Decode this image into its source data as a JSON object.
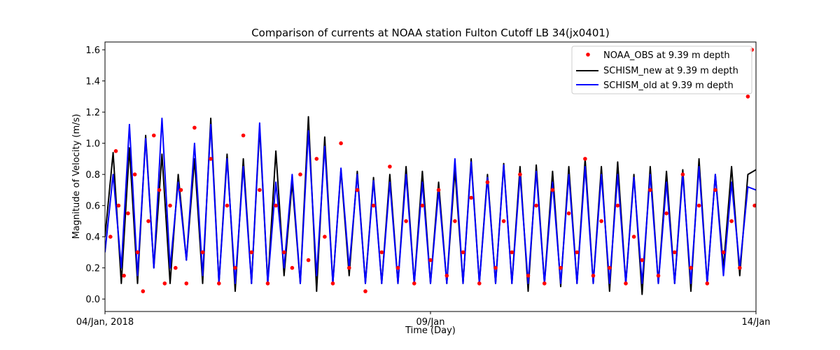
{
  "chart_data": {
    "type": "line",
    "title": "Comparison of currents at NOAA station Fulton Cutoff LB 34(jx0401)",
    "xlabel": "Time (Day)",
    "ylabel": "Magnitude of Velocity (m/s)",
    "xlim": [
      "2018-01-04",
      "2018-01-14"
    ],
    "ylim": [
      -0.08,
      1.65
    ],
    "yticks": [
      0.0,
      0.2,
      0.4,
      0.6,
      0.8,
      1.0,
      1.2,
      1.4,
      1.6
    ],
    "yticklabels": [
      "0.0",
      "0.2",
      "0.4",
      "0.6",
      "0.8",
      "1.0",
      "1.2",
      "1.4",
      "1.6"
    ],
    "xticks": [
      "2018-01-04",
      "2018-01-09",
      "2018-01-14"
    ],
    "xticklabels": [
      "04/Jan, 2018",
      "09/Jan",
      "14/Jan"
    ],
    "grid": false,
    "legend_position": "top-right",
    "series": [
      {
        "name": "NOAA_OBS at 9.39 m depth",
        "kind": "scatter",
        "color": "#ff0000",
        "x": [
          "2018-01-04T02:00",
          "2018-01-04T04:00",
          "2018-01-04T05:00",
          "2018-01-04T07:00",
          "2018-01-04T08:30",
          "2018-01-04T11:00",
          "2018-01-04T12:00",
          "2018-01-04T14:00",
          "2018-01-04T16:00",
          "2018-01-04T18:00",
          "2018-01-04T20:00",
          "2018-01-04T22:00",
          "2018-01-05T00:00",
          "2018-01-05T02:00",
          "2018-01-05T04:00",
          "2018-01-05T06:00",
          "2018-01-05T09:00",
          "2018-01-05T12:00",
          "2018-01-05T15:00",
          "2018-01-05T18:00",
          "2018-01-05T21:00",
          "2018-01-06T00:00",
          "2018-01-06T03:00",
          "2018-01-06T06:00",
          "2018-01-06T09:00",
          "2018-01-06T12:00",
          "2018-01-06T15:00",
          "2018-01-06T18:00",
          "2018-01-06T21:00",
          "2018-01-07T00:00",
          "2018-01-07T03:00",
          "2018-01-07T06:00",
          "2018-01-07T09:00",
          "2018-01-07T12:00",
          "2018-01-07T15:00",
          "2018-01-07T18:00",
          "2018-01-07T21:00",
          "2018-01-08T00:00",
          "2018-01-08T03:00",
          "2018-01-08T06:00",
          "2018-01-08T09:00",
          "2018-01-08T12:00",
          "2018-01-08T15:00",
          "2018-01-08T18:00",
          "2018-01-08T21:00",
          "2018-01-09T00:00",
          "2018-01-09T03:00",
          "2018-01-09T06:00",
          "2018-01-09T09:00",
          "2018-01-09T12:00",
          "2018-01-09T15:00",
          "2018-01-09T18:00",
          "2018-01-09T21:00",
          "2018-01-10T00:00",
          "2018-01-10T03:00",
          "2018-01-10T06:00",
          "2018-01-10T09:00",
          "2018-01-10T12:00",
          "2018-01-10T15:00",
          "2018-01-10T18:00",
          "2018-01-10T21:00",
          "2018-01-11T00:00",
          "2018-01-11T03:00",
          "2018-01-11T06:00",
          "2018-01-11T09:00",
          "2018-01-11T12:00",
          "2018-01-11T15:00",
          "2018-01-11T18:00",
          "2018-01-11T21:00",
          "2018-01-12T00:00",
          "2018-01-12T03:00",
          "2018-01-12T06:00",
          "2018-01-12T09:00",
          "2018-01-12T12:00",
          "2018-01-12T15:00",
          "2018-01-12T18:00",
          "2018-01-12T21:00",
          "2018-01-13T00:00",
          "2018-01-13T03:00",
          "2018-01-13T06:00",
          "2018-01-13T09:00",
          "2018-01-13T12:00",
          "2018-01-13T15:00",
          "2018-01-13T18:00",
          "2018-01-13T21:00",
          "2018-01-13T22:30",
          "2018-01-13T23:30"
        ],
        "y": [
          0.4,
          0.95,
          0.6,
          0.15,
          0.55,
          0.8,
          0.3,
          0.05,
          0.5,
          1.05,
          0.7,
          0.1,
          0.6,
          0.2,
          0.7,
          0.1,
          1.1,
          0.3,
          0.9,
          0.1,
          0.6,
          0.2,
          1.05,
          0.3,
          0.7,
          0.1,
          0.6,
          0.3,
          0.2,
          0.8,
          0.25,
          0.9,
          0.4,
          0.1,
          1.0,
          0.2,
          0.7,
          0.05,
          0.6,
          0.3,
          0.85,
          0.2,
          0.5,
          0.1,
          0.6,
          0.25,
          0.7,
          0.15,
          0.5,
          0.3,
          0.65,
          0.1,
          0.75,
          0.2,
          0.5,
          0.3,
          0.8,
          0.15,
          0.6,
          0.1,
          0.7,
          0.2,
          0.55,
          0.3,
          0.9,
          0.15,
          0.5,
          0.2,
          0.6,
          0.1,
          0.4,
          0.25,
          0.7,
          0.15,
          0.55,
          0.3,
          0.8,
          0.2,
          0.6,
          0.1,
          0.7,
          0.3,
          0.5,
          0.2,
          1.3,
          1.6,
          0.6
        ]
      },
      {
        "name": "SCHISM_new at 9.39 m depth",
        "kind": "line",
        "color": "#000000",
        "x": [
          "2018-01-04T00:00",
          "2018-01-04T03:00",
          "2018-01-04T06:00",
          "2018-01-04T09:00",
          "2018-01-04T12:00",
          "2018-01-04T15:00",
          "2018-01-04T18:00",
          "2018-01-04T21:00",
          "2018-01-05T00:00",
          "2018-01-05T03:00",
          "2018-01-05T06:00",
          "2018-01-05T09:00",
          "2018-01-05T12:00",
          "2018-01-05T15:00",
          "2018-01-05T18:00",
          "2018-01-05T21:00",
          "2018-01-06T00:00",
          "2018-01-06T03:00",
          "2018-01-06T06:00",
          "2018-01-06T09:00",
          "2018-01-06T12:00",
          "2018-01-06T15:00",
          "2018-01-06T18:00",
          "2018-01-06T21:00",
          "2018-01-07T00:00",
          "2018-01-07T03:00",
          "2018-01-07T06:00",
          "2018-01-07T09:00",
          "2018-01-07T12:00",
          "2018-01-07T15:00",
          "2018-01-07T18:00",
          "2018-01-07T21:00",
          "2018-01-08T00:00",
          "2018-01-08T03:00",
          "2018-01-08T06:00",
          "2018-01-08T09:00",
          "2018-01-08T12:00",
          "2018-01-08T15:00",
          "2018-01-08T18:00",
          "2018-01-08T21:00",
          "2018-01-09T00:00",
          "2018-01-09T03:00",
          "2018-01-09T06:00",
          "2018-01-09T09:00",
          "2018-01-09T12:00",
          "2018-01-09T15:00",
          "2018-01-09T18:00",
          "2018-01-09T21:00",
          "2018-01-10T00:00",
          "2018-01-10T03:00",
          "2018-01-10T06:00",
          "2018-01-10T09:00",
          "2018-01-10T12:00",
          "2018-01-10T15:00",
          "2018-01-10T18:00",
          "2018-01-10T21:00",
          "2018-01-11T00:00",
          "2018-01-11T03:00",
          "2018-01-11T06:00",
          "2018-01-11T09:00",
          "2018-01-11T12:00",
          "2018-01-11T15:00",
          "2018-01-11T18:00",
          "2018-01-11T21:00",
          "2018-01-12T00:00",
          "2018-01-12T03:00",
          "2018-01-12T06:00",
          "2018-01-12T09:00",
          "2018-01-12T12:00",
          "2018-01-12T15:00",
          "2018-01-12T18:00",
          "2018-01-12T21:00",
          "2018-01-13T00:00",
          "2018-01-13T03:00",
          "2018-01-13T06:00",
          "2018-01-13T09:00",
          "2018-01-13T12:00",
          "2018-01-13T15:00",
          "2018-01-13T18:00",
          "2018-01-13T21:00",
          "2018-01-14T00:00"
        ],
        "y": [
          0.4,
          0.94,
          0.1,
          0.97,
          0.1,
          1.05,
          0.2,
          0.93,
          0.1,
          0.8,
          0.25,
          0.9,
          0.1,
          1.16,
          0.1,
          0.93,
          0.05,
          0.9,
          0.1,
          1.1,
          0.1,
          0.95,
          0.15,
          0.75,
          0.1,
          1.17,
          0.05,
          1.04,
          0.1,
          0.83,
          0.15,
          0.82,
          0.1,
          0.78,
          0.1,
          0.8,
          0.1,
          0.85,
          0.1,
          0.82,
          0.1,
          0.75,
          0.1,
          0.83,
          0.1,
          0.9,
          0.1,
          0.8,
          0.1,
          0.87,
          0.1,
          0.85,
          0.05,
          0.86,
          0.1,
          0.82,
          0.08,
          0.85,
          0.1,
          0.9,
          0.1,
          0.85,
          0.05,
          0.88,
          0.1,
          0.8,
          0.03,
          0.85,
          0.1,
          0.82,
          0.1,
          0.83,
          0.05,
          0.9,
          0.1,
          0.8,
          0.2,
          0.85,
          0.15,
          0.8,
          0.83
        ]
      },
      {
        "name": "SCHISM_old at 9.39 m depth",
        "kind": "line",
        "color": "#0000ff",
        "x": [
          "2018-01-04T00:00",
          "2018-01-04T03:00",
          "2018-01-04T06:00",
          "2018-01-04T09:00",
          "2018-01-04T12:00",
          "2018-01-04T15:00",
          "2018-01-04T18:00",
          "2018-01-04T21:00",
          "2018-01-05T00:00",
          "2018-01-05T03:00",
          "2018-01-05T06:00",
          "2018-01-05T09:00",
          "2018-01-05T12:00",
          "2018-01-05T15:00",
          "2018-01-05T18:00",
          "2018-01-05T21:00",
          "2018-01-06T00:00",
          "2018-01-06T03:00",
          "2018-01-06T06:00",
          "2018-01-06T09:00",
          "2018-01-06T12:00",
          "2018-01-06T15:00",
          "2018-01-06T18:00",
          "2018-01-06T21:00",
          "2018-01-07T00:00",
          "2018-01-07T03:00",
          "2018-01-07T06:00",
          "2018-01-07T09:00",
          "2018-01-07T12:00",
          "2018-01-07T15:00",
          "2018-01-07T18:00",
          "2018-01-07T21:00",
          "2018-01-08T00:00",
          "2018-01-08T03:00",
          "2018-01-08T06:00",
          "2018-01-08T09:00",
          "2018-01-08T12:00",
          "2018-01-08T15:00",
          "2018-01-08T18:00",
          "2018-01-08T21:00",
          "2018-01-09T00:00",
          "2018-01-09T03:00",
          "2018-01-09T06:00",
          "2018-01-09T09:00",
          "2018-01-09T12:00",
          "2018-01-09T15:00",
          "2018-01-09T18:00",
          "2018-01-09T21:00",
          "2018-01-10T00:00",
          "2018-01-10T03:00",
          "2018-01-10T06:00",
          "2018-01-10T09:00",
          "2018-01-10T12:00",
          "2018-01-10T15:00",
          "2018-01-10T18:00",
          "2018-01-10T21:00",
          "2018-01-11T00:00",
          "2018-01-11T03:00",
          "2018-01-11T06:00",
          "2018-01-11T09:00",
          "2018-01-11T12:00",
          "2018-01-11T15:00",
          "2018-01-11T18:00",
          "2018-01-11T21:00",
          "2018-01-12T00:00",
          "2018-01-12T03:00",
          "2018-01-12T06:00",
          "2018-01-12T09:00",
          "2018-01-12T12:00",
          "2018-01-12T15:00",
          "2018-01-12T18:00",
          "2018-01-12T21:00",
          "2018-01-13T00:00",
          "2018-01-13T03:00",
          "2018-01-13T06:00",
          "2018-01-13T09:00",
          "2018-01-13T12:00",
          "2018-01-13T15:00",
          "2018-01-13T18:00",
          "2018-01-13T21:00",
          "2018-01-14T00:00"
        ],
        "y": [
          0.3,
          0.8,
          0.2,
          1.12,
          0.15,
          1.03,
          0.2,
          1.16,
          0.2,
          0.75,
          0.25,
          1.0,
          0.15,
          1.12,
          0.1,
          0.9,
          0.1,
          0.85,
          0.1,
          1.13,
          0.1,
          0.75,
          0.2,
          0.8,
          0.1,
          1.08,
          0.15,
          0.98,
          0.1,
          0.84,
          0.2,
          0.8,
          0.1,
          0.76,
          0.1,
          0.75,
          0.1,
          0.8,
          0.1,
          0.75,
          0.1,
          0.7,
          0.1,
          0.9,
          0.1,
          0.88,
          0.1,
          0.78,
          0.1,
          0.86,
          0.1,
          0.8,
          0.1,
          0.82,
          0.1,
          0.75,
          0.1,
          0.8,
          0.1,
          0.85,
          0.1,
          0.8,
          0.1,
          0.8,
          0.1,
          0.78,
          0.1,
          0.8,
          0.1,
          0.75,
          0.1,
          0.8,
          0.1,
          0.85,
          0.1,
          0.8,
          0.15,
          0.75,
          0.2,
          0.72,
          0.7
        ]
      }
    ]
  }
}
